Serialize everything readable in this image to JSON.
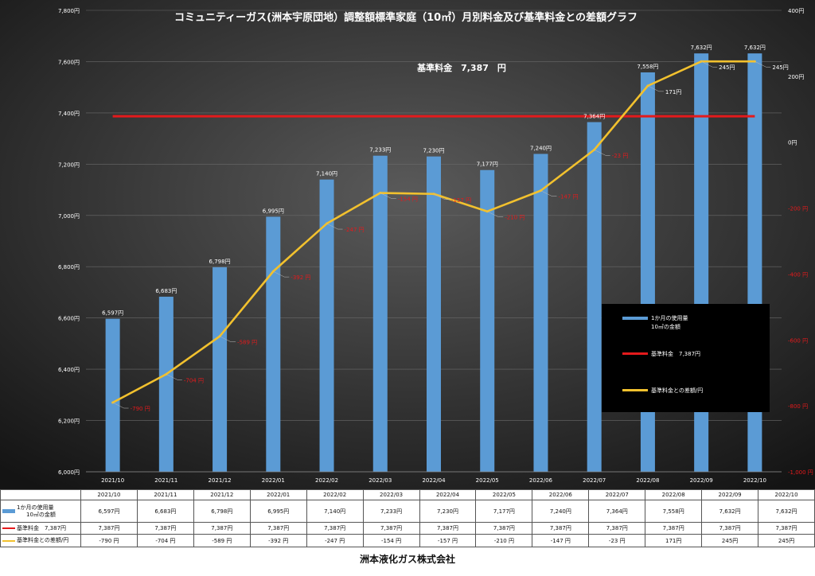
{
  "chart_data": {
    "type": "bar",
    "title": "コミュニティーガス(洲本宇原団地）調整額標準家庭（10㎥）月別料金及び基準料金との差額グラフ",
    "annotation": "基準料金　7,387　円",
    "categories": [
      "2021/10",
      "2021/11",
      "2021/12",
      "2022/01",
      "2022/02",
      "2022/03",
      "2022/04",
      "2022/05",
      "2022/06",
      "2022/07",
      "2022/08",
      "2022/09",
      "2022/10"
    ],
    "series": [
      {
        "name": "1か月の使用量\n10㎥の金額",
        "type": "bar",
        "axis": "left",
        "values": [
          6597,
          6683,
          6798,
          6995,
          7140,
          7233,
          7230,
          7177,
          7240,
          7364,
          7558,
          7632,
          7632
        ],
        "labels": [
          "6,597円",
          "6,683円",
          "6,798円",
          "6,995円",
          "7,140円",
          "7,233円",
          "7,230円",
          "7,177円",
          "7,240円",
          "7,364円",
          "7,558円",
          "7,632円",
          "7,632円"
        ]
      },
      {
        "name": "基準料金　7,387円",
        "type": "line",
        "axis": "left",
        "values": [
          7387,
          7387,
          7387,
          7387,
          7387,
          7387,
          7387,
          7387,
          7387,
          7387,
          7387,
          7387,
          7387
        ],
        "labels": [
          "7,387円",
          "7,387円",
          "7,387円",
          "7,387円",
          "7,387円",
          "7,387円",
          "7,387円",
          "7,387円",
          "7,387円",
          "7,387円",
          "7,387円",
          "7,387円",
          "7,387円"
        ]
      },
      {
        "name": "基準料金との差額/円",
        "type": "line",
        "axis": "right",
        "values": [
          -790,
          -704,
          -589,
          -392,
          -247,
          -154,
          -157,
          -210,
          -147,
          -23,
          171,
          245,
          245
        ],
        "labels": [
          "-790 円",
          "-704 円",
          "-589 円",
          "-392 円",
          "-247 円",
          "-154 円",
          "-157 円",
          "-210 円",
          "-147 円",
          "-23 円",
          "171円",
          "245円",
          "245円"
        ],
        "point_labels": [
          "-790 円",
          "-704 円",
          "-589 円",
          "-392 円",
          "-247 円",
          "-154 円",
          "-157 円",
          "-210 円",
          "-147 円",
          "-23 円",
          "171円",
          "245円",
          "245円"
        ]
      }
    ],
    "y_left": {
      "min": 6000,
      "max": 7800,
      "ticks": [
        6000,
        6200,
        6400,
        6600,
        6800,
        7000,
        7200,
        7400,
        7600,
        7800
      ],
      "tick_labels": [
        "6,000円",
        "6,200円",
        "6,400円",
        "6,600円",
        "6,800円",
        "7,000円",
        "7,200円",
        "7,400円",
        "7,600円",
        "7,800円"
      ]
    },
    "y_right": {
      "min": -1000,
      "max": 400,
      "ticks": [
        -1000,
        -800,
        -600,
        -400,
        -200,
        0,
        200,
        400
      ],
      "tick_labels": [
        "-1,000 円",
        "-800 円",
        "-600 円",
        "-400 円",
        "-200 円",
        "0円",
        "200円",
        "400円"
      ]
    },
    "legend": {
      "placement": "right",
      "entries": [
        "1か月の使用量\n10㎥の金額",
        "基準料金　7,387円",
        "基準料金との差額/円"
      ]
    },
    "grid": true,
    "colors": {
      "bar": "#5b9bd5",
      "base_line": "#e41a1c",
      "diff_line": "#f2c12e",
      "negative_label": "#e41a1c",
      "background": "#1c1c1c"
    }
  },
  "table": {
    "rows": [
      {
        "key": "bar",
        "label_line1": "1か月の使用量",
        "label_line2": "10㎥の金額",
        "values": [
          "6,597円",
          "6,683円",
          "6,798円",
          "6,995円",
          "7,140円",
          "7,233円",
          "7,230円",
          "7,177円",
          "7,240円",
          "7,364円",
          "7,558円",
          "7,632円",
          "7,632円"
        ]
      },
      {
        "key": "red",
        "label_line1": "基準料金　7,387円",
        "label_line2": "",
        "values": [
          "7,387円",
          "7,387円",
          "7,387円",
          "7,387円",
          "7,387円",
          "7,387円",
          "7,387円",
          "7,387円",
          "7,387円",
          "7,387円",
          "7,387円",
          "7,387円",
          "7,387円"
        ]
      },
      {
        "key": "gold",
        "label_line1": "基準料金との差額/円",
        "label_line2": "",
        "values": [
          "-790 円",
          "-704 円",
          "-589 円",
          "-392 円",
          "-247 円",
          "-154 円",
          "-157 円",
          "-210 円",
          "-147 円",
          "-23 円",
          "171円",
          "245円",
          "245円"
        ]
      }
    ]
  },
  "footer": {
    "company": "洲本液化ガス株式会社"
  }
}
